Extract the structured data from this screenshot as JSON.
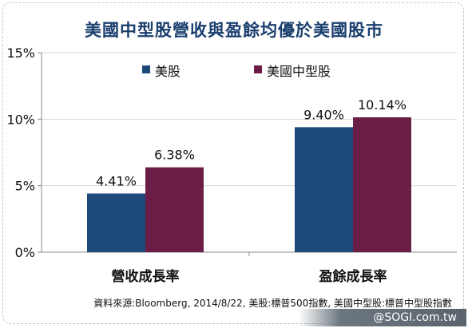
{
  "title": "美國中型股營收與盈餘均優於美國股市",
  "source": "資料來源:Bloomberg, 2014/8/22, 美股:標普500指數, 美國中型股:標普中型股指數",
  "watermark": "@SOGI.com.tw",
  "chart_data": {
    "type": "bar",
    "title": "美國中型股營收與盈餘均優於美國股市",
    "categories": [
      "營收成長率",
      "盈餘成長率"
    ],
    "series": [
      {
        "name": "美股",
        "values": [
          4.41,
          9.4
        ],
        "labels": [
          "4.41%",
          "9.40%"
        ],
        "color": "#1e4a7b"
      },
      {
        "name": "美國中型股",
        "values": [
          6.38,
          10.14
        ],
        "labels": [
          "6.38%",
          "10.14%"
        ],
        "color": "#6a1d45"
      }
    ],
    "ylim": [
      0,
      15
    ],
    "yticks": [
      "0%",
      "5%",
      "10%",
      "15%"
    ],
    "ytick_values": [
      0,
      5,
      10,
      15
    ],
    "grid": true,
    "legend_position": "top"
  }
}
